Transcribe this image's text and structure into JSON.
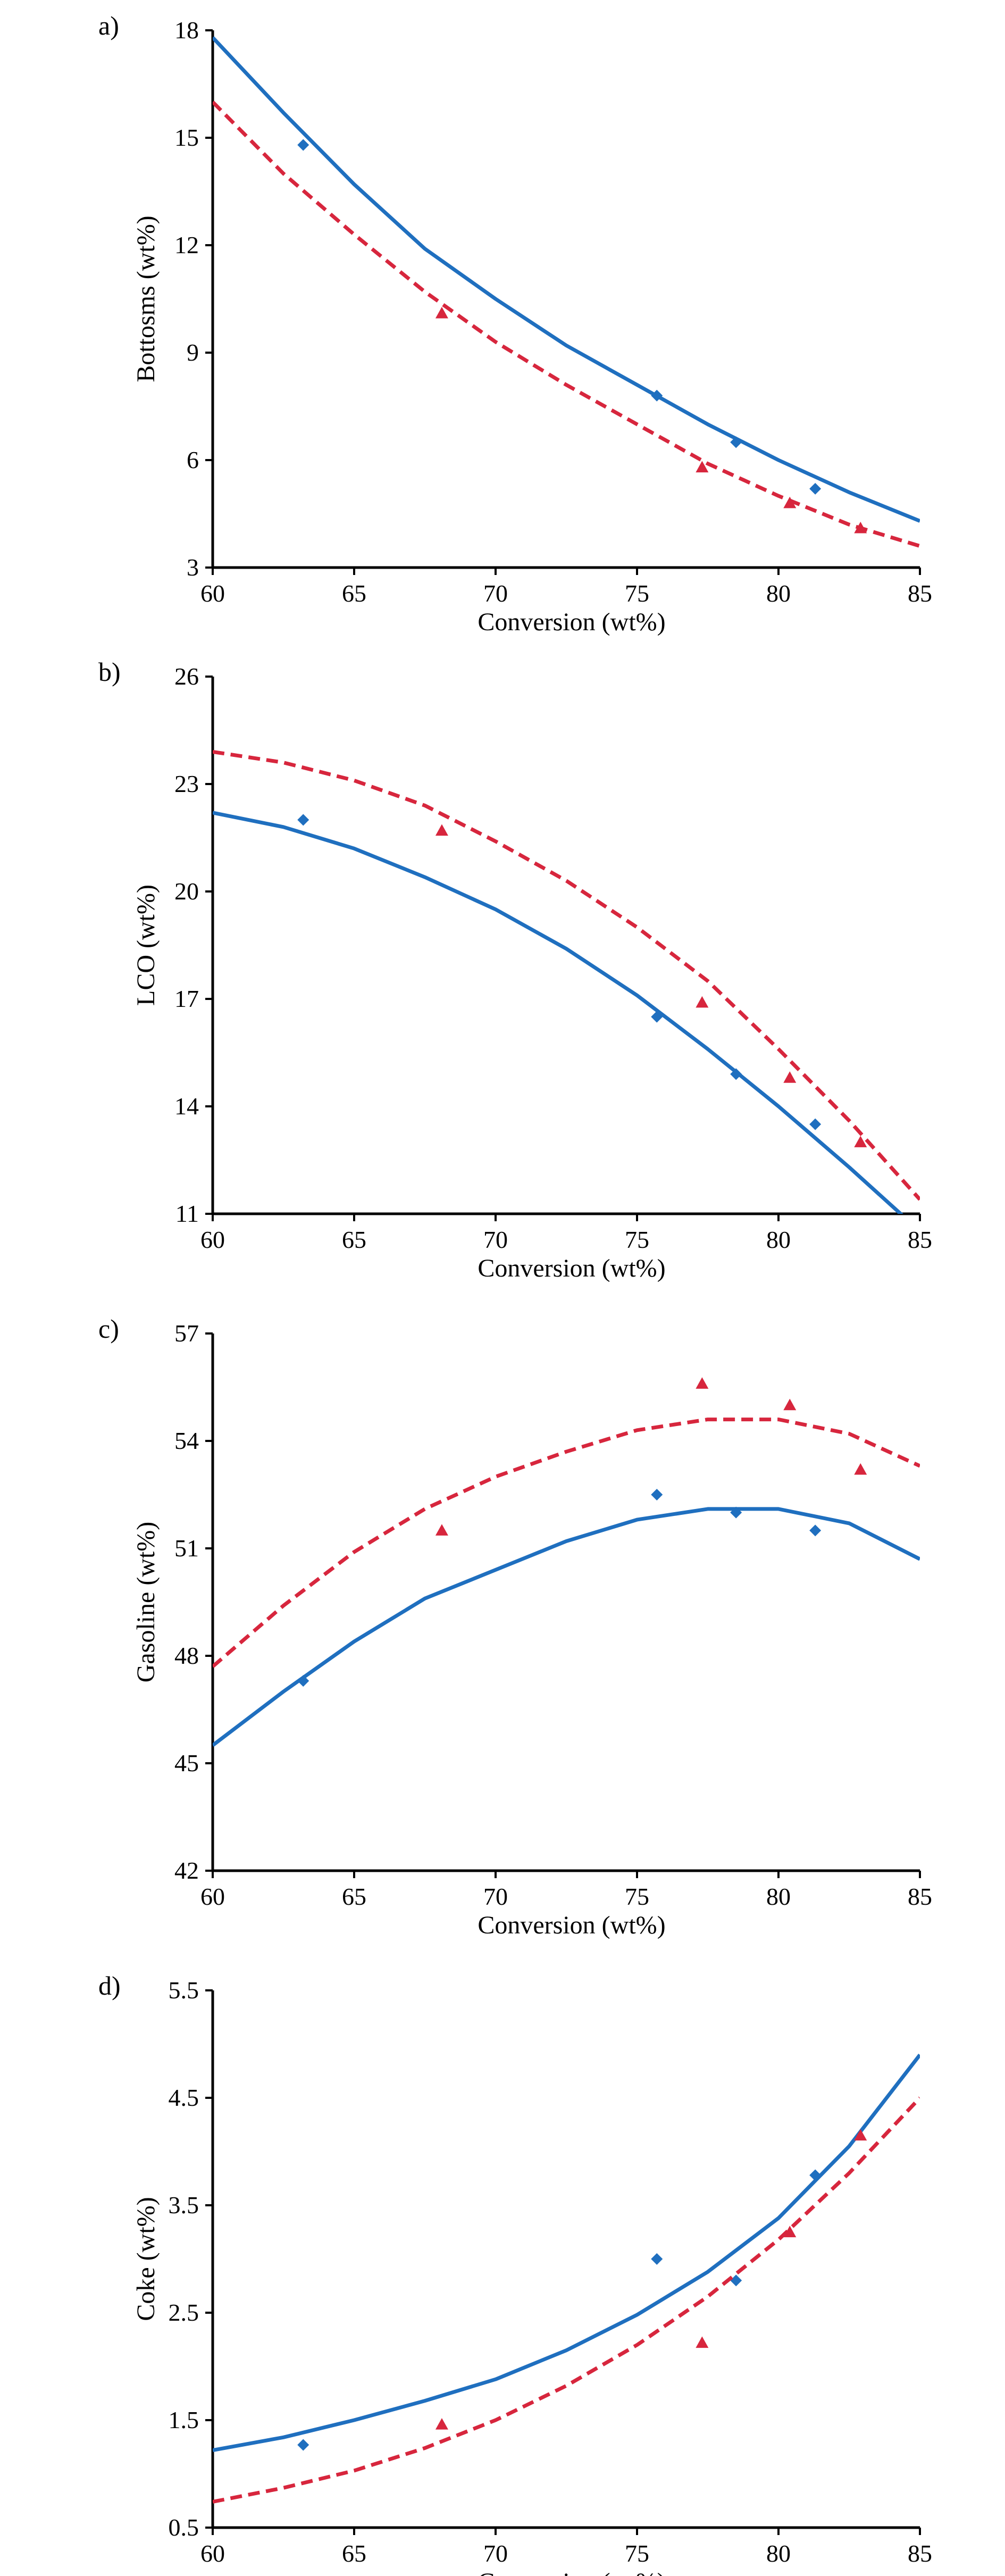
{
  "chart_data": [
    {
      "type": "line",
      "panel_label": "a)",
      "xlabel": "Conversion (wt%)",
      "ylabel": "Bottosms (wt%)",
      "xlim": [
        60,
        85
      ],
      "ylim": [
        3,
        18
      ],
      "xticks": [
        60,
        65,
        70,
        75,
        80,
        85
      ],
      "yticks": [
        3,
        6,
        9,
        12,
        15,
        18
      ],
      "grid": false,
      "series": [
        {
          "color": "#1f6fbf",
          "marker": "diamond",
          "points": [
            [
              63.2,
              14.8
            ],
            [
              75.7,
              7.8
            ],
            [
              78.5,
              6.5
            ],
            [
              81.3,
              5.2
            ]
          ],
          "fit": [
            [
              60,
              17.8
            ],
            [
              62.5,
              15.7
            ],
            [
              65,
              13.7
            ],
            [
              67.5,
              11.9
            ],
            [
              70,
              10.5
            ],
            [
              72.5,
              9.2
            ],
            [
              75,
              8.1
            ],
            [
              77.5,
              7.0
            ],
            [
              80,
              6.0
            ],
            [
              82.5,
              5.1
            ],
            [
              85,
              4.3
            ]
          ],
          "fit_style": "solid"
        },
        {
          "color": "#d7263d",
          "marker": "triangle",
          "points": [
            [
              68.1,
              10.1
            ],
            [
              77.3,
              5.8
            ],
            [
              80.4,
              4.8
            ],
            [
              82.9,
              4.1
            ]
          ],
          "fit": [
            [
              60,
              16.0
            ],
            [
              62.5,
              14.0
            ],
            [
              65,
              12.3
            ],
            [
              67.5,
              10.7
            ],
            [
              70,
              9.3
            ],
            [
              72.5,
              8.1
            ],
            [
              75,
              7.0
            ],
            [
              77.5,
              5.9
            ],
            [
              80,
              5.0
            ],
            [
              82.5,
              4.2
            ],
            [
              85,
              3.6
            ]
          ],
          "fit_style": "dashed"
        }
      ]
    },
    {
      "type": "line",
      "panel_label": "b)",
      "xlabel": "Conversion (wt%)",
      "ylabel": "LCO (wt%)",
      "xlim": [
        60,
        85
      ],
      "ylim": [
        11,
        26
      ],
      "xticks": [
        60,
        65,
        70,
        75,
        80,
        85
      ],
      "yticks": [
        11,
        14,
        17,
        20,
        23,
        26
      ],
      "grid": false,
      "series": [
        {
          "color": "#1f6fbf",
          "marker": "diamond",
          "points": [
            [
              63.2,
              22.0
            ],
            [
              75.7,
              16.5
            ],
            [
              78.5,
              14.9
            ],
            [
              81.3,
              13.5
            ]
          ],
          "fit": [
            [
              60,
              22.2
            ],
            [
              62.5,
              21.8
            ],
            [
              65,
              21.2
            ],
            [
              67.5,
              20.4
            ],
            [
              70,
              19.5
            ],
            [
              72.5,
              18.4
            ],
            [
              75,
              17.1
            ],
            [
              77.5,
              15.6
            ],
            [
              80,
              14.0
            ],
            [
              82.5,
              12.3
            ],
            [
              84.6,
              10.8
            ]
          ],
          "fit_style": "solid"
        },
        {
          "color": "#d7263d",
          "marker": "triangle",
          "points": [
            [
              68.1,
              21.7
            ],
            [
              77.3,
              16.9
            ],
            [
              80.4,
              14.8
            ],
            [
              82.9,
              13.0
            ]
          ],
          "fit": [
            [
              60,
              23.9
            ],
            [
              62.5,
              23.6
            ],
            [
              65,
              23.1
            ],
            [
              67.5,
              22.4
            ],
            [
              70,
              21.4
            ],
            [
              72.5,
              20.3
            ],
            [
              75,
              19.0
            ],
            [
              77.5,
              17.5
            ],
            [
              80,
              15.6
            ],
            [
              82.5,
              13.6
            ],
            [
              85,
              11.4
            ]
          ],
          "fit_style": "dashed"
        }
      ]
    },
    {
      "type": "line",
      "panel_label": "c)",
      "xlabel": "Conversion (wt%)",
      "ylabel": "Gasoline (wt%)",
      "xlim": [
        60,
        85
      ],
      "ylim": [
        42,
        57
      ],
      "xticks": [
        60,
        65,
        70,
        75,
        80,
        85
      ],
      "yticks": [
        42,
        45,
        48,
        51,
        54,
        57
      ],
      "grid": false,
      "series": [
        {
          "color": "#1f6fbf",
          "marker": "diamond",
          "points": [
            [
              63.2,
              47.3
            ],
            [
              75.7,
              52.5
            ],
            [
              78.5,
              52.0
            ],
            [
              81.3,
              51.5
            ]
          ],
          "fit": [
            [
              60,
              45.5
            ],
            [
              62.5,
              47.0
            ],
            [
              65,
              48.4
            ],
            [
              67.5,
              49.6
            ],
            [
              70,
              50.4
            ],
            [
              72.5,
              51.2
            ],
            [
              75,
              51.8
            ],
            [
              77.5,
              52.1
            ],
            [
              80,
              52.1
            ],
            [
              82.5,
              51.7
            ],
            [
              85,
              50.7
            ]
          ],
          "fit_style": "solid"
        },
        {
          "color": "#d7263d",
          "marker": "triangle",
          "points": [
            [
              68.1,
              51.5
            ],
            [
              77.3,
              55.6
            ],
            [
              80.4,
              55.0
            ],
            [
              82.9,
              53.2
            ]
          ],
          "fit": [
            [
              60,
              47.7
            ],
            [
              62.5,
              49.4
            ],
            [
              65,
              50.9
            ],
            [
              67.5,
              52.1
            ],
            [
              70,
              53.0
            ],
            [
              72.5,
              53.7
            ],
            [
              75,
              54.3
            ],
            [
              77.5,
              54.6
            ],
            [
              80,
              54.6
            ],
            [
              82.5,
              54.2
            ],
            [
              85,
              53.3
            ]
          ],
          "fit_style": "dashed"
        }
      ]
    },
    {
      "type": "line",
      "panel_label": "d)",
      "xlabel": "Conversion (wt%)",
      "ylabel": "Coke (wt%)",
      "xlim": [
        60,
        85
      ],
      "ylim": [
        0.5,
        5.5
      ],
      "xticks": [
        60,
        65,
        70,
        75,
        80,
        85
      ],
      "yticks": [
        0.5,
        1.5,
        2.5,
        3.5,
        4.5,
        5.5
      ],
      "grid": false,
      "series": [
        {
          "color": "#1f6fbf",
          "marker": "diamond",
          "points": [
            [
              63.2,
              1.27
            ],
            [
              75.7,
              3.0
            ],
            [
              78.5,
              2.8
            ],
            [
              81.3,
              3.78
            ]
          ],
          "fit": [
            [
              60,
              1.22
            ],
            [
              62.5,
              1.34
            ],
            [
              65,
              1.5
            ],
            [
              67.5,
              1.68
            ],
            [
              70,
              1.88
            ],
            [
              72.5,
              2.15
            ],
            [
              75,
              2.48
            ],
            [
              77.5,
              2.88
            ],
            [
              80,
              3.38
            ],
            [
              82.5,
              4.05
            ],
            [
              85,
              4.9
            ]
          ],
          "fit_style": "solid"
        },
        {
          "color": "#d7263d",
          "marker": "triangle",
          "points": [
            [
              68.1,
              1.46
            ],
            [
              77.3,
              2.22
            ],
            [
              80.4,
              3.25
            ],
            [
              82.9,
              4.15
            ]
          ],
          "fit": [
            [
              60,
              0.74
            ],
            [
              62.5,
              0.87
            ],
            [
              65,
              1.03
            ],
            [
              67.5,
              1.24
            ],
            [
              70,
              1.5
            ],
            [
              72.5,
              1.82
            ],
            [
              75,
              2.2
            ],
            [
              77.5,
              2.65
            ],
            [
              80,
              3.18
            ],
            [
              82.5,
              3.8
            ],
            [
              85,
              4.5
            ]
          ],
          "fit_style": "dashed"
        }
      ]
    }
  ]
}
